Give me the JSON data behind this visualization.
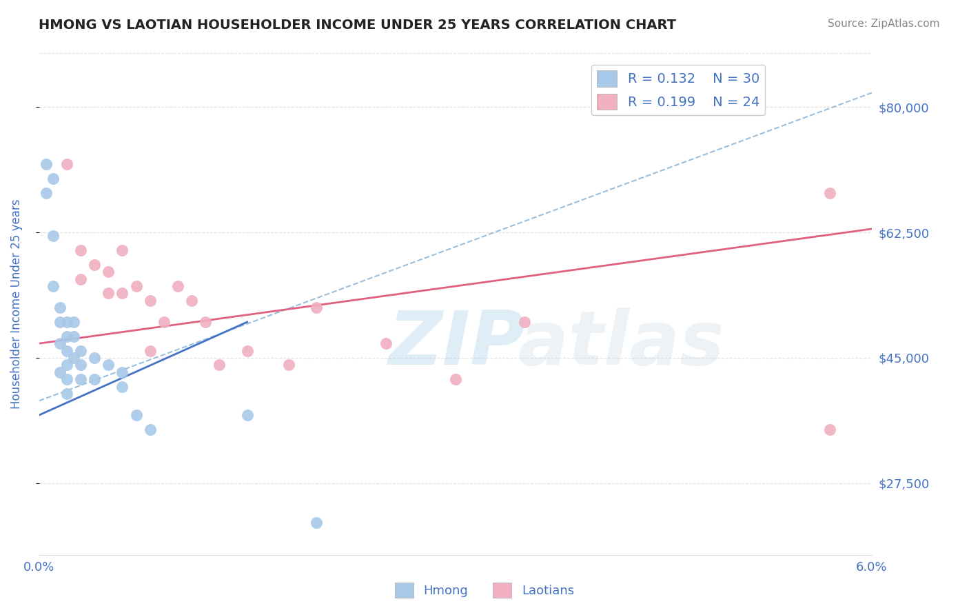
{
  "title": "HMONG VS LAOTIAN HOUSEHOLDER INCOME UNDER 25 YEARS CORRELATION CHART",
  "source_text": "Source: ZipAtlas.com",
  "ylabel": "Householder Income Under 25 years",
  "xlim": [
    0.0,
    0.06
  ],
  "ylim": [
    17500,
    87500
  ],
  "yticks": [
    27500,
    45000,
    62500,
    80000
  ],
  "ytick_labels": [
    "$27,500",
    "$45,000",
    "$62,500",
    "$80,000"
  ],
  "xticks": [
    0.0,
    0.01,
    0.02,
    0.03,
    0.04,
    0.05,
    0.06
  ],
  "xtick_labels": [
    "0.0%",
    "",
    "",
    "",
    "",
    "",
    "6.0%"
  ],
  "hmong_R": 0.132,
  "hmong_N": 30,
  "laotian_R": 0.199,
  "laotian_N": 24,
  "hmong_color": "#a8c8e8",
  "laotian_color": "#f0b0c0",
  "hmong_line_color": "#4472c4",
  "laotian_line_color": "#e06080",
  "dashed_line_color": "#90b8d8",
  "tick_label_color": "#4472c4",
  "background_color": "#ffffff",
  "hmong_x": [
    0.0005,
    0.0005,
    0.001,
    0.001,
    0.001,
    0.0015,
    0.0015,
    0.0015,
    0.0015,
    0.002,
    0.002,
    0.002,
    0.002,
    0.002,
    0.002,
    0.0025,
    0.0025,
    0.0025,
    0.003,
    0.003,
    0.003,
    0.004,
    0.004,
    0.005,
    0.006,
    0.006,
    0.007,
    0.008,
    0.015,
    0.02
  ],
  "hmong_y": [
    72000,
    68000,
    70000,
    62000,
    55000,
    52000,
    50000,
    47000,
    43000,
    50000,
    48000,
    46000,
    44000,
    42000,
    40000,
    50000,
    48000,
    45000,
    46000,
    44000,
    42000,
    45000,
    42000,
    44000,
    43000,
    41000,
    37000,
    35000,
    37000,
    22000
  ],
  "laotian_x": [
    0.002,
    0.003,
    0.003,
    0.004,
    0.005,
    0.005,
    0.006,
    0.006,
    0.007,
    0.008,
    0.008,
    0.009,
    0.01,
    0.011,
    0.012,
    0.013,
    0.015,
    0.018,
    0.02,
    0.025,
    0.03,
    0.035,
    0.057,
    0.057
  ],
  "laotian_y": [
    72000,
    60000,
    56000,
    58000,
    57000,
    54000,
    60000,
    54000,
    55000,
    53000,
    46000,
    50000,
    55000,
    53000,
    50000,
    44000,
    46000,
    44000,
    52000,
    47000,
    42000,
    50000,
    35000,
    68000
  ],
  "grid_color": "#cccccc",
  "grid_alpha": 0.6,
  "hmong_line_x0": 0.0,
  "hmong_line_y0": 37000,
  "hmong_line_x1": 0.015,
  "hmong_line_y1": 50000,
  "laotian_line_x0": 0.0,
  "laotian_line_y0": 47000,
  "laotian_line_x1": 0.06,
  "laotian_line_y1": 63000,
  "dashed_line_x0": 0.0,
  "dashed_line_y0": 39000,
  "dashed_line_x1": 0.06,
  "dashed_line_y1": 82000,
  "watermark_zip_color": "#6aafd8",
  "watermark_atlas_color": "#b0c8d8"
}
